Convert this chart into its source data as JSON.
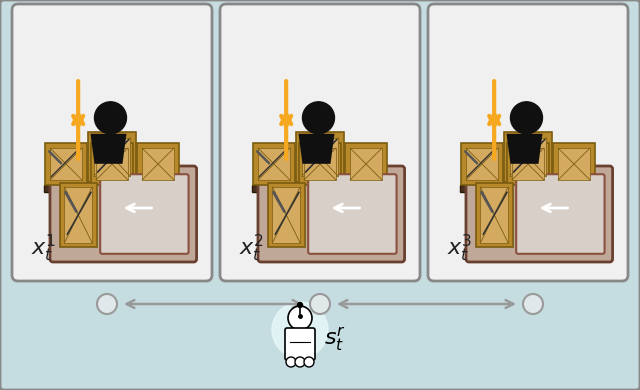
{
  "bg_color": "#c5dde0",
  "panel_bg": "#f0f0f0",
  "panel_border": "#888888",
  "shelf_color": "#4a3020",
  "box_color": "#b8892a",
  "box_dark": "#7a5c10",
  "box_inner": "#d4aa60",
  "desk_color": "#c0a898",
  "desk_border": "#6a4030",
  "workspace_light": "#d8d0c8",
  "workspace_border": "#8a5040",
  "arrow_color": "#f5a820",
  "person_color": "#101010",
  "label_color": "#222222",
  "gray_color": "#999999",
  "white": "#ffffff",
  "outer_bg": "#b8ccd0",
  "glow_color": "#e8f8f8"
}
